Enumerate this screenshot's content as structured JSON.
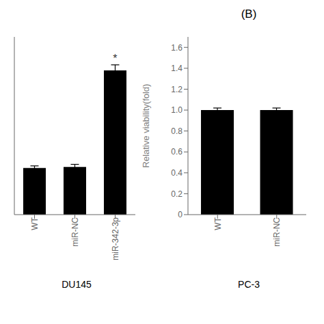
{
  "chart_data": [
    {
      "type": "bar",
      "categories": [
        "WT",
        "miR-NC",
        "miR-342-3p"
      ],
      "values": [
        0.46,
        0.47,
        1.42
      ],
      "errors": [
        0.02,
        0.025,
        0.055
      ],
      "color": "#000000",
      "xlabel": "DU145",
      "ylim": [
        0,
        1.75
      ],
      "tick_labels": "x",
      "annotations": [
        {
          "text": "*",
          "category": "miR-342-3p"
        }
      ]
    },
    {
      "type": "bar",
      "title": "(B)",
      "categories": [
        "WT",
        "miR-NC"
      ],
      "values": [
        1.0,
        1.0
      ],
      "errors": [
        0.02,
        0.02
      ],
      "color": "#000000",
      "ylabel": "Relative viability(fold)",
      "xlabel": "PC-3",
      "ylim": [
        0,
        1.7
      ],
      "yticks": [
        0,
        0.2,
        0.4,
        0.6,
        0.8,
        {
          "value": 1,
          "label": "1.0"
        },
        1.2,
        1.4,
        1.6
      ]
    }
  ]
}
